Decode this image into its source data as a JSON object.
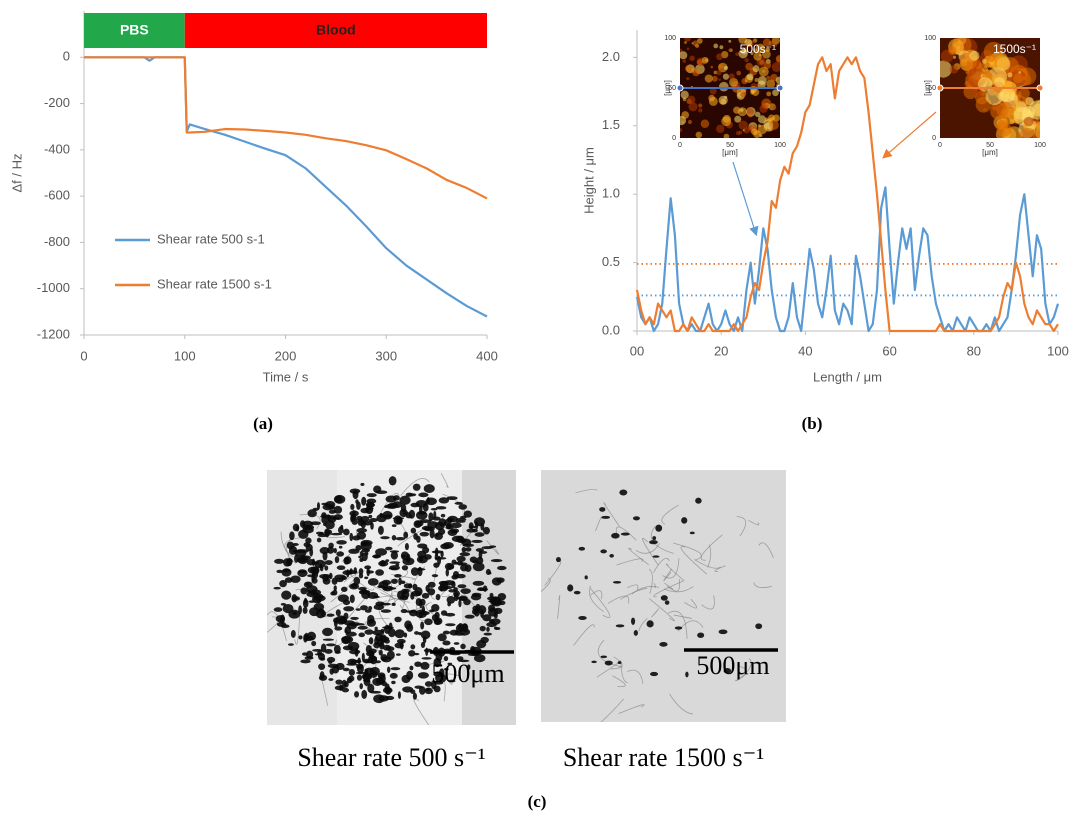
{
  "chart_data": [
    {
      "type": "line",
      "panel_label": "(a)",
      "x_label": "Time / s",
      "y_label": "Δf / Hz",
      "phases": [
        {
          "label": "PBS",
          "start": 0,
          "end": 100,
          "color": "#22a84a"
        },
        {
          "label": "Blood",
          "start": 100,
          "end": 400,
          "color": "#ff0000"
        }
      ],
      "x": [
        0,
        20,
        40,
        60,
        65,
        70,
        80,
        100,
        102,
        105,
        120,
        140,
        160,
        180,
        200,
        220,
        240,
        260,
        280,
        300,
        320,
        340,
        360,
        380,
        400
      ],
      "series": [
        {
          "name": "Shear rate 500 s-1",
          "color": "#5b9bd5",
          "values": [
            0,
            0,
            0,
            0,
            -15,
            0,
            0,
            0,
            -320,
            -290,
            -310,
            -335,
            -365,
            -395,
            -423,
            -480,
            -560,
            -640,
            -730,
            -825,
            -900,
            -960,
            -1020,
            -1075,
            -1120
          ]
        },
        {
          "name": "Shear rate 1500 s-1",
          "color": "#ed7d31",
          "values": [
            0,
            0,
            0,
            0,
            0,
            0,
            0,
            0,
            -325,
            -325,
            -322,
            -310,
            -312,
            -318,
            -325,
            -335,
            -350,
            -362,
            -380,
            -402,
            -440,
            -480,
            -530,
            -565,
            -610
          ]
        }
      ],
      "xlim": [
        0,
        400
      ],
      "xticks": [
        0,
        100,
        200,
        300,
        400
      ],
      "ylim": [
        -1200,
        200
      ],
      "yticks": [
        -1200,
        -1000,
        -800,
        -600,
        -400,
        -200,
        0
      ]
    },
    {
      "type": "line",
      "panel_label": "(b)",
      "x_label": "Length / μm",
      "y_label": "Height / μm",
      "x": [
        0,
        1,
        2,
        3,
        4,
        5,
        6,
        7,
        8,
        9,
        10,
        11,
        12,
        13,
        14,
        15,
        16,
        17,
        18,
        19,
        20,
        21,
        22,
        23,
        24,
        25,
        26,
        27,
        28,
        29,
        30,
        31,
        32,
        33,
        34,
        35,
        36,
        37,
        38,
        39,
        40,
        41,
        42,
        43,
        44,
        45,
        46,
        47,
        48,
        49,
        50,
        51,
        52,
        53,
        54,
        55,
        56,
        57,
        58,
        59,
        60,
        61,
        62,
        63,
        64,
        65,
        66,
        67,
        68,
        69,
        70,
        71,
        72,
        73,
        74,
        75,
        76,
        77,
        78,
        79,
        80,
        81,
        82,
        83,
        84,
        85,
        86,
        87,
        88,
        89,
        90,
        91,
        92,
        93,
        94,
        95,
        96,
        97,
        98,
        99,
        100
      ],
      "series": [
        {
          "color": "#5b9bd5",
          "values": [
            0.25,
            0.1,
            0.05,
            0.1,
            0,
            0.05,
            0.2,
            0.6,
            0.97,
            0.7,
            0.2,
            0.05,
            0,
            0.05,
            0,
            0,
            0.1,
            0.2,
            0.05,
            0,
            0.05,
            0.15,
            0.05,
            0,
            0.1,
            0,
            0.3,
            0.5,
            0.2,
            0.45,
            0.75,
            0.6,
            0.3,
            0.1,
            0,
            0,
            0.1,
            0.35,
            0.1,
            0,
            0.3,
            0.6,
            0.45,
            0.2,
            0.1,
            0.3,
            0.55,
            0.15,
            0.05,
            0.2,
            0.15,
            0.05,
            0.55,
            0.4,
            0.2,
            0,
            0.05,
            0.3,
            0.9,
            1.05,
            0.6,
            0.2,
            0.5,
            0.75,
            0.6,
            0.75,
            0.3,
            0.55,
            0.75,
            0.7,
            0.4,
            0.2,
            0.1,
            0,
            0.05,
            0,
            0.1,
            0.05,
            0,
            0.1,
            0.05,
            0,
            0,
            0.05,
            0,
            0.1,
            0,
            0.05,
            0.1,
            0.3,
            0.55,
            0.85,
            1.0,
            0.7,
            0.4,
            0.7,
            0.6,
            0.2,
            0.05,
            0.1,
            0.2
          ]
        },
        {
          "color": "#ed7d31",
          "values": [
            0.3,
            0.15,
            0.05,
            0.1,
            0.05,
            0.2,
            0.15,
            0.1,
            0.15,
            0,
            0,
            0.05,
            0,
            0.1,
            0.05,
            0,
            0,
            0.05,
            0,
            0,
            0,
            0,
            0,
            0.05,
            0,
            0.05,
            0.1,
            0.25,
            0.35,
            0.3,
            0.5,
            0.65,
            0.95,
            0.9,
            1.1,
            1.2,
            1.15,
            1.3,
            1.35,
            1.45,
            1.6,
            1.65,
            1.8,
            1.95,
            2.0,
            1.9,
            1.95,
            1.7,
            1.9,
            1.95,
            2.0,
            1.95,
            2.0,
            1.9,
            1.85,
            1.6,
            1.3,
            1.0,
            0.65,
            0.3,
            0,
            0,
            0,
            0,
            0,
            0,
            0,
            0,
            0,
            0,
            0,
            0,
            0.05,
            0,
            0,
            0,
            0,
            0,
            0,
            0,
            0,
            0,
            0,
            0,
            0,
            0.05,
            0.1,
            0.25,
            0.35,
            0.3,
            0.5,
            0.4,
            0.2,
            0.1,
            0.05,
            0.15,
            0.1,
            0.05,
            0.05,
            0,
            0.05
          ]
        }
      ],
      "ref_lines": [
        {
          "value": 0.49,
          "color": "#ed7d31"
        },
        {
          "value": 0.26,
          "color": "#5b9bd5"
        }
      ],
      "insets": [
        {
          "title": "500s⁻¹",
          "axis_label": "[μm]",
          "ticks": [
            0,
            50,
            100
          ],
          "lim": [
            0,
            100
          ],
          "color": "#4472c4"
        },
        {
          "title": "1500s⁻¹",
          "axis_label": "[μm]",
          "ticks": [
            0,
            50,
            100
          ],
          "lim": [
            0,
            100
          ],
          "color": "#ed7d31"
        }
      ],
      "xlim": [
        0,
        100
      ],
      "xticks": [
        {
          "value": 0,
          "label": "00"
        },
        20,
        40,
        60,
        80,
        100
      ],
      "ylim": [
        0,
        2.2
      ],
      "yticks": [
        {
          "value": 0,
          "label": "0.0"
        },
        0.5,
        {
          "value": 1,
          "label": "1.0"
        },
        1.5,
        {
          "value": 2,
          "label": "2.0"
        }
      ]
    }
  ],
  "figure_c": {
    "label": "(c)",
    "images": [
      {
        "scale_bar": "500μm",
        "caption": "Shear rate 500 s⁻¹"
      },
      {
        "scale_bar": "500μm",
        "caption": "Shear rate 1500 s⁻¹"
      }
    ]
  }
}
